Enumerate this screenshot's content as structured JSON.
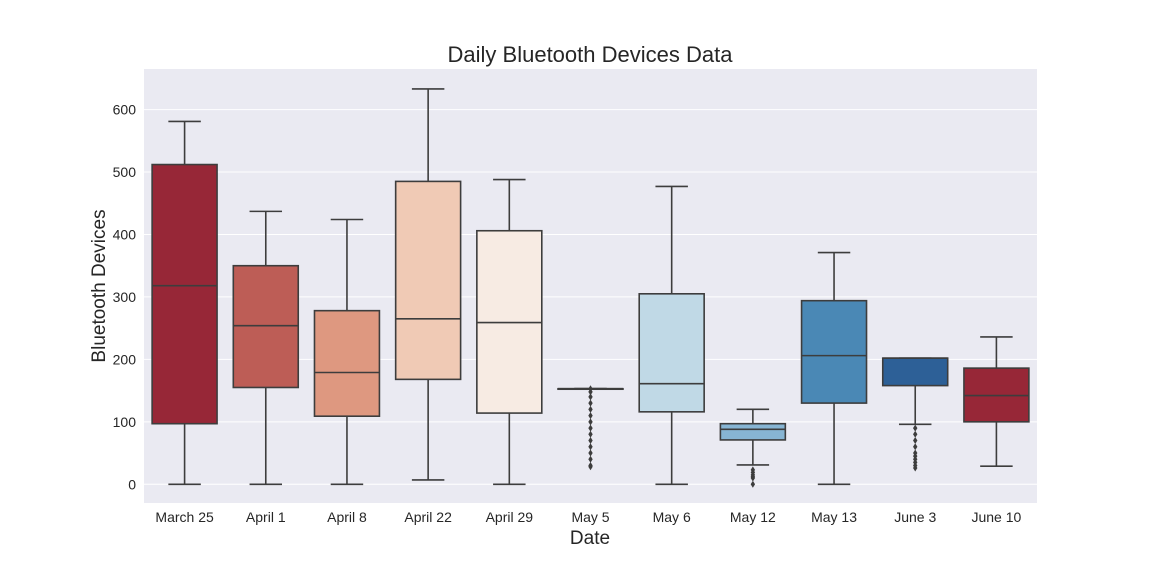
{
  "chart_data": {
    "type": "box",
    "title": "Daily Bluetooth Devices Data",
    "xlabel": "Date",
    "ylabel": "Bluetooth Devices",
    "ylim": [
      -30,
      665
    ],
    "yticks": [
      0,
      100,
      200,
      300,
      400,
      500,
      600
    ],
    "grid": true,
    "legend": "none",
    "categories": [
      "March 25",
      "April 1",
      "April 8",
      "April 22",
      "April 29",
      "May 5",
      "May 6",
      "May 12",
      "May 13",
      "June 3",
      "June 10"
    ],
    "boxes": [
      {
        "category": "March 25",
        "whisker_low": 0,
        "q1": 97,
        "median": 318,
        "q3": 512,
        "whisker_high": 581,
        "outliers": [],
        "color": "#972737"
      },
      {
        "category": "April 1",
        "whisker_low": 0,
        "q1": 155,
        "median": 254,
        "q3": 350,
        "whisker_high": 437,
        "outliers": [],
        "color": "#bd5d56"
      },
      {
        "category": "April 8",
        "whisker_low": 0,
        "q1": 109,
        "median": 179,
        "q3": 278,
        "whisker_high": 424,
        "outliers": [],
        "color": "#de9880"
      },
      {
        "category": "April 22",
        "whisker_low": 7,
        "q1": 168,
        "median": 265,
        "q3": 485,
        "whisker_high": 633,
        "outliers": [],
        "color": "#f0cab5"
      },
      {
        "category": "April 29",
        "whisker_low": 0,
        "q1": 114,
        "median": 259,
        "q3": 406,
        "whisker_high": 488,
        "outliers": [],
        "color": "#f7ebe3"
      },
      {
        "category": "May 5",
        "whisker_low": 153,
        "q1": 153,
        "median": 153,
        "q3": 153,
        "whisker_high": 153,
        "outliers": [
          153,
          148,
          140,
          130,
          120,
          110,
          100,
          90,
          80,
          70,
          60,
          50,
          40,
          30,
          28
        ],
        "color": "#ececef"
      },
      {
        "category": "May 6",
        "whisker_low": 0,
        "q1": 116,
        "median": 161,
        "q3": 305,
        "whisker_high": 477,
        "outliers": [],
        "color": "#c0d9e6"
      },
      {
        "category": "May 12",
        "whisker_low": 31,
        "q1": 71,
        "median": 88,
        "q3": 97,
        "whisker_high": 120,
        "outliers": [
          23,
          19,
          15,
          12,
          10,
          0
        ],
        "color": "#87b5d3"
      },
      {
        "category": "May 13",
        "whisker_low": 0,
        "q1": 130,
        "median": 206,
        "q3": 294,
        "whisker_high": 371,
        "outliers": [],
        "color": "#4a88b5"
      },
      {
        "category": "June 3",
        "whisker_low": 96,
        "q1": 158,
        "median": 202,
        "q3": 202,
        "whisker_high": 202,
        "outliers": [
          90,
          80,
          70,
          60,
          50,
          45,
          40,
          35,
          30,
          26
        ],
        "color": "#2d6097"
      },
      {
        "category": "June 10",
        "whisker_low": 29,
        "q1": 100,
        "median": 142,
        "q3": 186,
        "whisker_high": 236,
        "outliers": [],
        "color": "#972737"
      }
    ]
  }
}
